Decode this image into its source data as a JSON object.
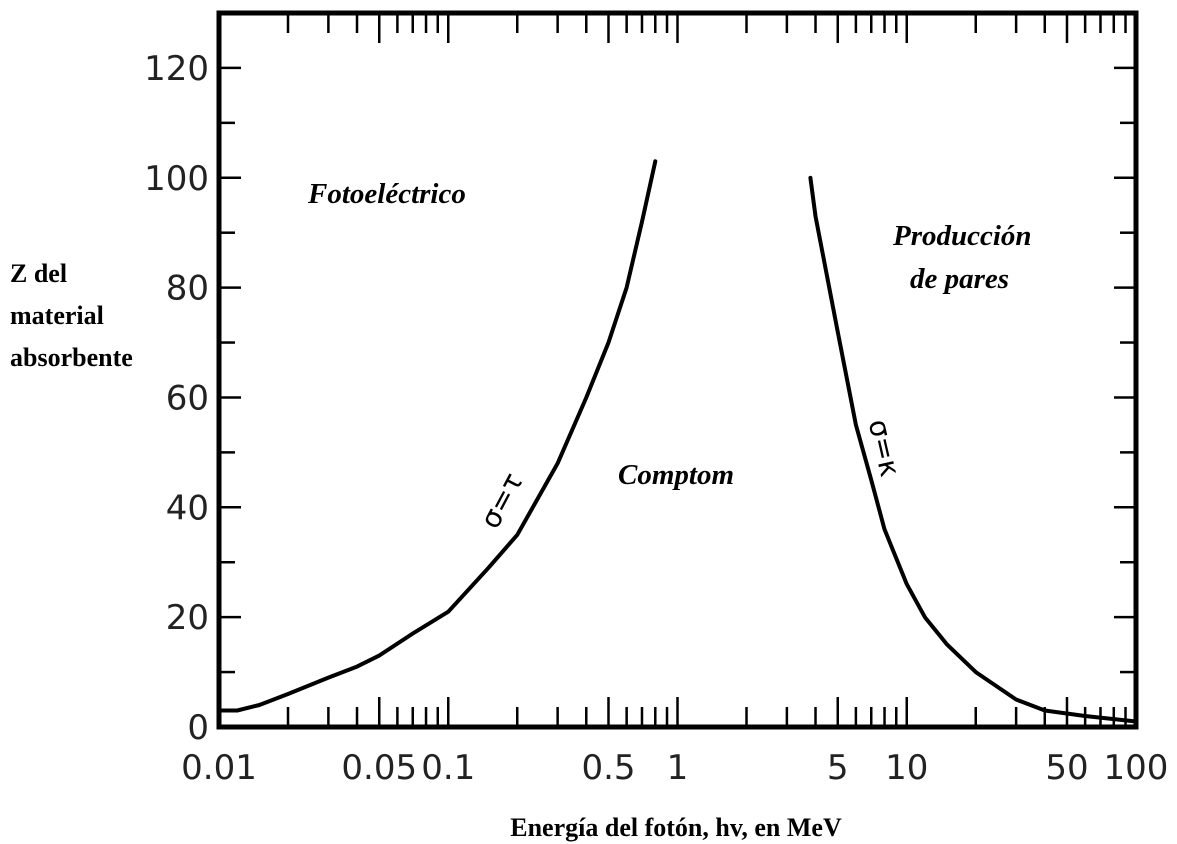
{
  "chart_data": {
    "type": "line",
    "xlabel": "Energía del fotón, hv, en MeV",
    "ylabel_lines": [
      "Z del",
      "material",
      "absorbente"
    ],
    "x_scale": "log",
    "xlim": [
      0.01,
      100
    ],
    "ylim": [
      0,
      130
    ],
    "x_ticks": [
      0.01,
      0.05,
      0.1,
      0.5,
      1,
      5,
      10,
      50,
      100
    ],
    "x_tick_labels": [
      "0.01",
      "0.05",
      "0.1",
      "0.5",
      "1",
      "5",
      "10",
      "50",
      "100"
    ],
    "y_ticks": [
      0,
      20,
      40,
      60,
      80,
      100,
      120
    ],
    "y_tick_labels": [
      "0",
      "20",
      "40",
      "60",
      "80",
      "100",
      "120"
    ],
    "grid": false,
    "region_labels": {
      "photoelectric": "Fotoeléctrico",
      "compton": "Comptom",
      "pair_line1": "Producción",
      "pair_line2": "de pares"
    },
    "series": [
      {
        "label": "σ=τ",
        "x": [
          0.01,
          0.012,
          0.015,
          0.02,
          0.03,
          0.04,
          0.05,
          0.07,
          0.1,
          0.15,
          0.2,
          0.3,
          0.4,
          0.5,
          0.6,
          0.7,
          0.8
        ],
        "y": [
          3,
          3,
          4,
          6,
          9,
          11,
          13,
          17,
          21,
          29,
          35,
          48,
          60,
          70,
          80,
          92,
          103
        ]
      },
      {
        "label": "σ=κ",
        "x": [
          3.8,
          4,
          5,
          6,
          7,
          8,
          10,
          12,
          15,
          20,
          30,
          40,
          60,
          100
        ],
        "y": [
          100,
          93,
          72,
          55,
          45,
          36,
          26,
          20,
          15,
          10,
          5,
          3,
          2,
          1
        ]
      }
    ]
  }
}
